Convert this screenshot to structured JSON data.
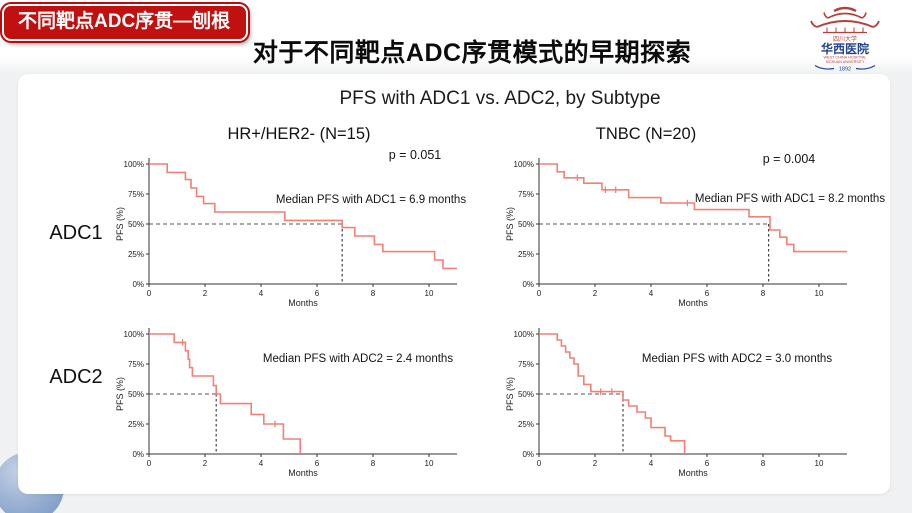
{
  "banner": {
    "label": "不同靶点ADC序贯—刨根"
  },
  "header": {
    "title": "对于不同靶点ADC序贯模式的早期探索"
  },
  "logo": {
    "university": "四川大学",
    "hospital": "华西医院",
    "english_line1": "WEST CHINA HOSPITAL",
    "english_line2": "SICHUAN UNIVERSITY",
    "year": "1892"
  },
  "figure": {
    "title": "PFS with ADC1 vs. ADC2, by Subtype",
    "column_headers": [
      "HR+/HER2- (N=15)",
      "TNBC (N=20)"
    ],
    "row_labels": [
      "ADC1",
      "ADC2"
    ]
  },
  "colors": {
    "banner_red": "#c01010",
    "curve_salmon": "#ef8176",
    "dashed_reference": "#555555",
    "logo_red": "#b5403a",
    "logo_blue": "#24418f",
    "corner_circle_blue": "#6f92bf",
    "background_gray": "#f0f1f2"
  },
  "chart_data": [
    {
      "type": "line",
      "kind": "kaplan-meier-step",
      "row": "ADC1",
      "subtype": "HR+/HER2-",
      "n": 15,
      "p_value": "p = 0.051",
      "median_months": 6.9,
      "annotation": "Median PFS with ADC1 = 6.9 months",
      "xlabel": "Months",
      "ylabel": "PFS (%)",
      "xticks": [
        0,
        2,
        4,
        6,
        8,
        10
      ],
      "xlim": [
        0,
        11
      ],
      "yticks": [
        "0%",
        "25%",
        "50%",
        "75%",
        "100%"
      ],
      "ylim": [
        0,
        100
      ],
      "x_end": 11.0,
      "steps": [
        [
          0,
          100
        ],
        [
          0.65,
          93
        ],
        [
          1.3,
          87
        ],
        [
          1.5,
          80
        ],
        [
          1.7,
          73
        ],
        [
          1.95,
          67
        ],
        [
          2.35,
          60
        ],
        [
          4.85,
          53
        ],
        [
          6.9,
          47
        ],
        [
          7.35,
          40
        ],
        [
          8.05,
          33
        ],
        [
          8.35,
          27
        ],
        [
          10.2,
          20
        ],
        [
          10.5,
          13
        ]
      ],
      "censor_marks": [],
      "layout": {
        "annotation_xy": [
          266,
          65
        ],
        "p_xy": [
          310,
          21
        ],
        "legend": "none",
        "grid": false
      }
    },
    {
      "type": "line",
      "kind": "kaplan-meier-step",
      "row": "ADC1",
      "subtype": "TNBC",
      "n": 20,
      "p_value": "p = 0.004",
      "median_months": 8.2,
      "annotation": "Median PFS with ADC1 = 8.2 months",
      "xlabel": "Months",
      "ylabel": "PFS (%)",
      "xticks": [
        0,
        2,
        4,
        6,
        8,
        10
      ],
      "xlim": [
        0,
        11
      ],
      "yticks": [
        "0%",
        "25%",
        "50%",
        "75%",
        "100%"
      ],
      "ylim": [
        0,
        100
      ],
      "x_end": 11.0,
      "steps": [
        [
          0,
          100
        ],
        [
          0.65,
          93.5
        ],
        [
          0.9,
          88.5
        ],
        [
          1.6,
          84
        ],
        [
          2.25,
          78.5
        ],
        [
          3.2,
          72
        ],
        [
          4.35,
          67.5
        ],
        [
          5.55,
          62
        ],
        [
          7.5,
          56
        ],
        [
          8.25,
          45
        ],
        [
          8.6,
          39
        ],
        [
          8.85,
          33
        ],
        [
          9.1,
          27
        ]
      ],
      "censor_marks": [
        [
          1.37,
          88.5
        ],
        [
          2.37,
          78.5
        ],
        [
          2.74,
          78.5
        ],
        [
          5.3,
          67.5
        ]
      ],
      "layout": {
        "annotation_xy": [
          295,
          64
        ],
        "p_xy": [
          294,
          25
        ],
        "legend": "none",
        "grid": false
      }
    },
    {
      "type": "line",
      "kind": "kaplan-meier-step",
      "row": "ADC2",
      "subtype": "HR+/HER2-",
      "n": 15,
      "p_value": null,
      "median_months": 2.4,
      "annotation": "Median PFS with ADC2 = 2.4 months",
      "xlabel": "Months",
      "ylabel": "PFS (%)",
      "xticks": [
        0,
        2,
        4,
        6,
        8,
        10
      ],
      "xlim": [
        0,
        11
      ],
      "yticks": [
        "0%",
        "25%",
        "50%",
        "75%",
        "100%"
      ],
      "ylim": [
        0,
        100
      ],
      "x_end": 5.4,
      "steps": [
        [
          0,
          100
        ],
        [
          0.9,
          93
        ],
        [
          1.3,
          86
        ],
        [
          1.4,
          79
        ],
        [
          1.45,
          72
        ],
        [
          1.55,
          65
        ],
        [
          2.3,
          57
        ],
        [
          2.4,
          50
        ],
        [
          2.55,
          42
        ],
        [
          3.65,
          33
        ],
        [
          4.1,
          25
        ],
        [
          4.8,
          12.5
        ],
        [
          5.4,
          0
        ]
      ],
      "censor_marks": [
        [
          1.2,
          93
        ],
        [
          4.5,
          25
        ]
      ],
      "layout": {
        "annotation_xy": [
          253,
          54
        ],
        "p_xy": null,
        "legend": "none",
        "grid": false
      }
    },
    {
      "type": "line",
      "kind": "kaplan-meier-step",
      "row": "ADC2",
      "subtype": "TNBC",
      "n": 20,
      "p_value": null,
      "median_months": 3.0,
      "annotation": "Median PFS with ADC2 = 3.0 months",
      "xlabel": "Months",
      "ylabel": "PFS (%)",
      "xticks": [
        0,
        2,
        4,
        6,
        8,
        10
      ],
      "xlim": [
        0,
        11
      ],
      "yticks": [
        "0%",
        "25%",
        "50%",
        "75%",
        "100%"
      ],
      "ylim": [
        0,
        100
      ],
      "x_end": 5.2,
      "steps": [
        [
          0,
          100
        ],
        [
          0.65,
          95
        ],
        [
          0.8,
          90
        ],
        [
          0.95,
          85
        ],
        [
          1.1,
          80
        ],
        [
          1.25,
          75
        ],
        [
          1.4,
          65
        ],
        [
          1.6,
          58
        ],
        [
          1.85,
          52
        ],
        [
          3.0,
          45
        ],
        [
          3.2,
          40
        ],
        [
          3.5,
          35
        ],
        [
          3.8,
          30
        ],
        [
          4.0,
          22
        ],
        [
          4.5,
          15
        ],
        [
          4.7,
          11
        ],
        [
          5.2,
          0
        ]
      ],
      "censor_marks": [
        [
          2.2,
          52
        ],
        [
          2.6,
          52
        ]
      ],
      "layout": {
        "annotation_xy": [
          242,
          54
        ],
        "p_xy": null,
        "legend": "none",
        "grid": false
      }
    }
  ]
}
